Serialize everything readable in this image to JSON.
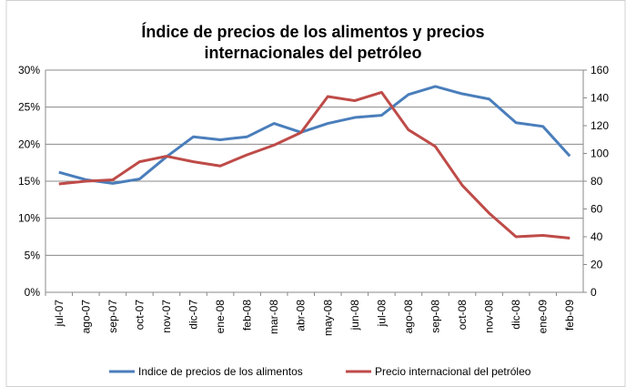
{
  "chart_data": {
    "type": "line",
    "title": "Índice de precios de los alimentos y precios internacionales del petróleo",
    "categories": [
      "jul-07",
      "ago-07",
      "sep-07",
      "oct-07",
      "nov-07",
      "dic-07",
      "ene-08",
      "feb-08",
      "mar-08",
      "abr-08",
      "may-08",
      "jun-08",
      "jul-08",
      "ago-08",
      "sep-08",
      "oct-08",
      "nov-08",
      "dic-08",
      "ene-09",
      "feb-09"
    ],
    "series": [
      {
        "name": "Indice de precios de los alimentos",
        "color": "#4a7ebb",
        "values": [
          16.2,
          15.2,
          14.7,
          15.3,
          18.3,
          21.0,
          20.6,
          21.0,
          22.8,
          21.6,
          22.8,
          23.6,
          23.9,
          26.7,
          27.8,
          26.8,
          26.1,
          22.9,
          22.4,
          18.4
        ]
      },
      {
        "name": "Precio internacional del petróleo",
        "color": "#be4b48",
        "axis": "y2",
        "values": [
          78,
          80,
          81,
          94,
          98,
          94,
          91,
          99,
          106,
          115,
          141,
          138,
          144,
          117,
          105,
          77,
          57,
          40,
          41,
          39
        ]
      }
    ],
    "ylim": [
      0,
      30
    ],
    "yticks": [
      {
        "value": 0,
        "label": "0%"
      },
      {
        "value": 5,
        "label": "5%"
      },
      {
        "value": 10,
        "label": "10%"
      },
      {
        "value": 15,
        "label": "15%"
      },
      {
        "value": 20,
        "label": "20%"
      },
      {
        "value": 25,
        "label": "25%"
      },
      {
        "value": 30,
        "label": "30%"
      }
    ],
    "y2lim": [
      0,
      160
    ],
    "y2ticks": [
      0,
      20,
      40,
      60,
      80,
      100,
      120,
      140,
      160
    ],
    "grid": true
  }
}
